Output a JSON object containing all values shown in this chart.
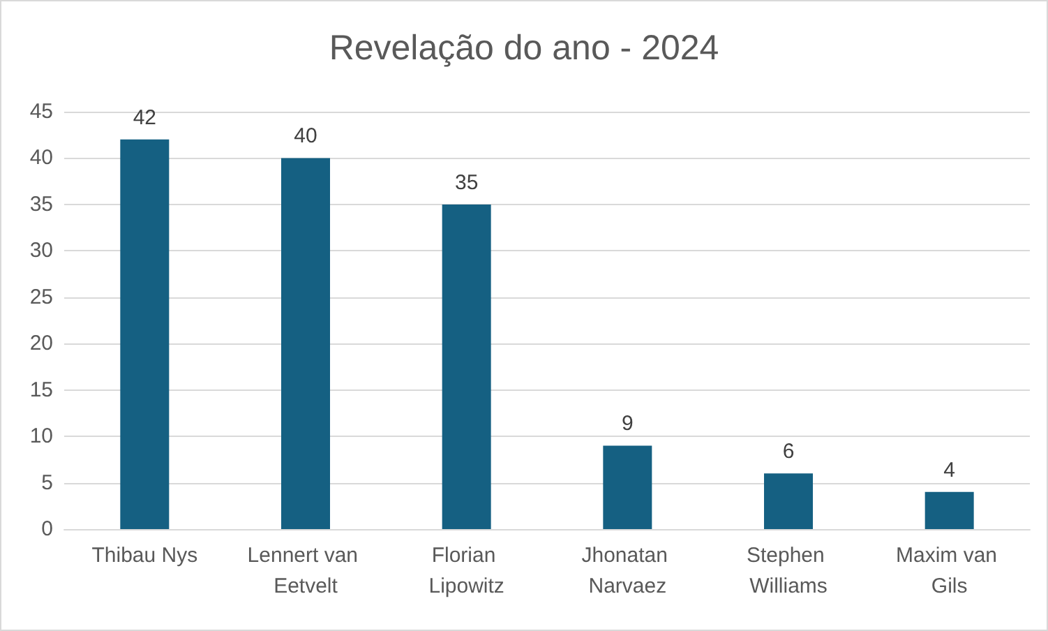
{
  "chart_data": {
    "type": "bar",
    "title": "Revelação do ano - 2024",
    "categories": [
      "Thibau Nys",
      "Lennert van Eetvelt",
      "Florian Lipowitz",
      "Jhonatan Narvaez",
      "Stephen Williams",
      "Maxim van Gils"
    ],
    "values": [
      42,
      40,
      35,
      9,
      6,
      4
    ],
    "color": "#156082",
    "ylim": [
      0,
      45
    ],
    "yticks": [
      0,
      5,
      10,
      15,
      20,
      25,
      30,
      35,
      40,
      45
    ],
    "grid": "y",
    "data_labels": true
  }
}
